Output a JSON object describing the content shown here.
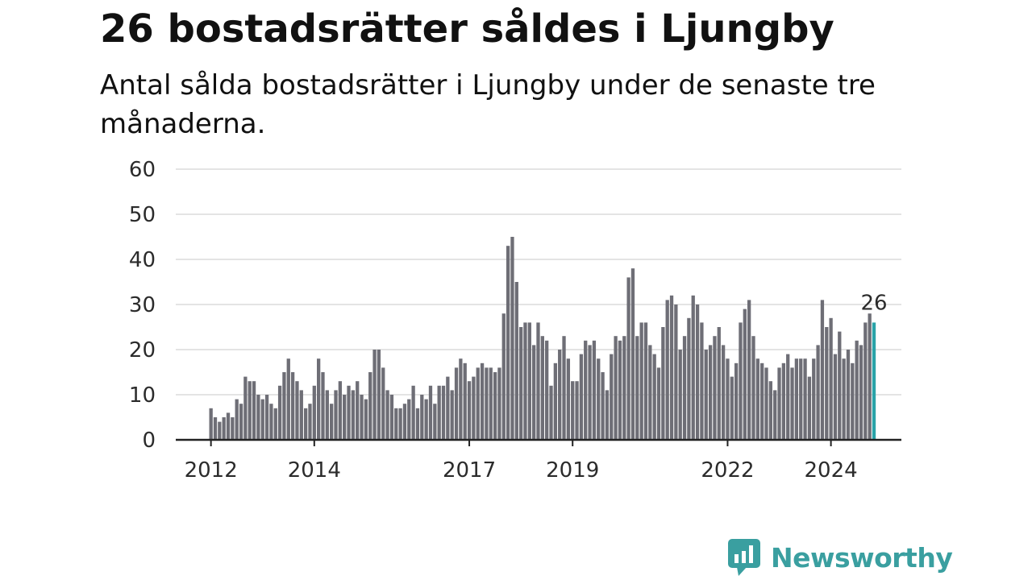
{
  "title": "26 bostadsrätter såldes i Ljungby",
  "subtitle": "Antal sålda bostadsrätter i Ljungby under de senaste tre månaderna.",
  "logo": {
    "text": "Newsworthy",
    "icon": "bar-chart-speech-bubble-icon"
  },
  "colors": {
    "bar": "#6e6e76",
    "highlight": "#2aa3a8",
    "grid": "#dcdcdc",
    "axis": "#222222",
    "brand": "#3a9fa0"
  },
  "chart_data": {
    "type": "bar",
    "title": "26 bostadsrätter såldes i Ljungby",
    "subtitle": "Antal sålda bostadsrätter i Ljungby under de senaste tre månaderna.",
    "xlabel": "",
    "ylabel": "",
    "ylim": [
      0,
      60
    ],
    "yticks": [
      "0",
      "10",
      "20",
      "30",
      "40",
      "50",
      "60"
    ],
    "grid": true,
    "legend": "none",
    "x_start": "2012-01",
    "x_ticks": [
      {
        "label": "2012",
        "month": "2012-01"
      },
      {
        "label": "2014",
        "month": "2014-01"
      },
      {
        "label": "2017",
        "month": "2017-01"
      },
      {
        "label": "2019",
        "month": "2019-01"
      },
      {
        "label": "2022",
        "month": "2022-01"
      },
      {
        "label": "2024",
        "month": "2024-01"
      }
    ],
    "values": [
      7,
      5,
      4,
      5,
      6,
      5,
      9,
      8,
      14,
      13,
      13,
      10,
      9,
      10,
      8,
      7,
      12,
      15,
      18,
      15,
      13,
      11,
      7,
      8,
      12,
      18,
      15,
      11,
      8,
      11,
      13,
      10,
      12,
      11,
      13,
      10,
      9,
      15,
      20,
      20,
      16,
      11,
      10,
      7,
      7,
      8,
      9,
      12,
      7,
      10,
      9,
      12,
      8,
      12,
      12,
      14,
      11,
      16,
      18,
      17,
      13,
      14,
      16,
      17,
      16,
      16,
      15,
      16,
      28,
      43,
      45,
      35,
      25,
      26,
      26,
      21,
      26,
      23,
      22,
      12,
      17,
      20,
      23,
      18,
      13,
      13,
      19,
      22,
      21,
      22,
      18,
      15,
      11,
      19,
      23,
      22,
      23,
      36,
      38,
      23,
      26,
      26,
      21,
      19,
      16,
      25,
      31,
      32,
      30,
      20,
      23,
      27,
      32,
      30,
      26,
      20,
      21,
      23,
      25,
      21,
      18,
      14,
      17,
      26,
      29,
      31,
      23,
      18,
      17,
      16,
      13,
      11,
      16,
      17,
      19,
      16,
      18,
      18,
      18,
      14,
      18,
      21,
      31,
      25,
      27,
      19,
      24,
      18,
      20,
      17,
      22,
      21,
      26,
      28,
      26
    ],
    "highlight_last": true,
    "highlight_label": "26"
  }
}
